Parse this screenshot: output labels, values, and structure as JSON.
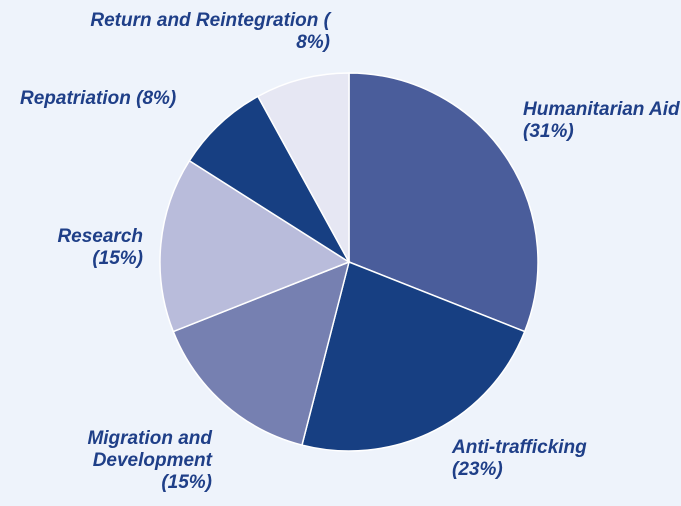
{
  "chart_data": {
    "type": "pie",
    "categories": [
      "Humanitarian Aid",
      "Anti-trafficking",
      "Migration and Development",
      "Research",
      "Repatriation",
      "Return and Reintegration"
    ],
    "values": [
      31,
      23,
      15,
      15,
      8,
      8
    ],
    "value_labels": [
      "(31%)",
      "(23%)",
      "(15%)",
      "(15%)",
      "(8%)",
      "( 8%)"
    ],
    "colors": [
      "#4a5d9b",
      "#173f82",
      "#7680b1",
      "#b9bcdb",
      "#173f82",
      "#e6e7f3"
    ]
  }
}
